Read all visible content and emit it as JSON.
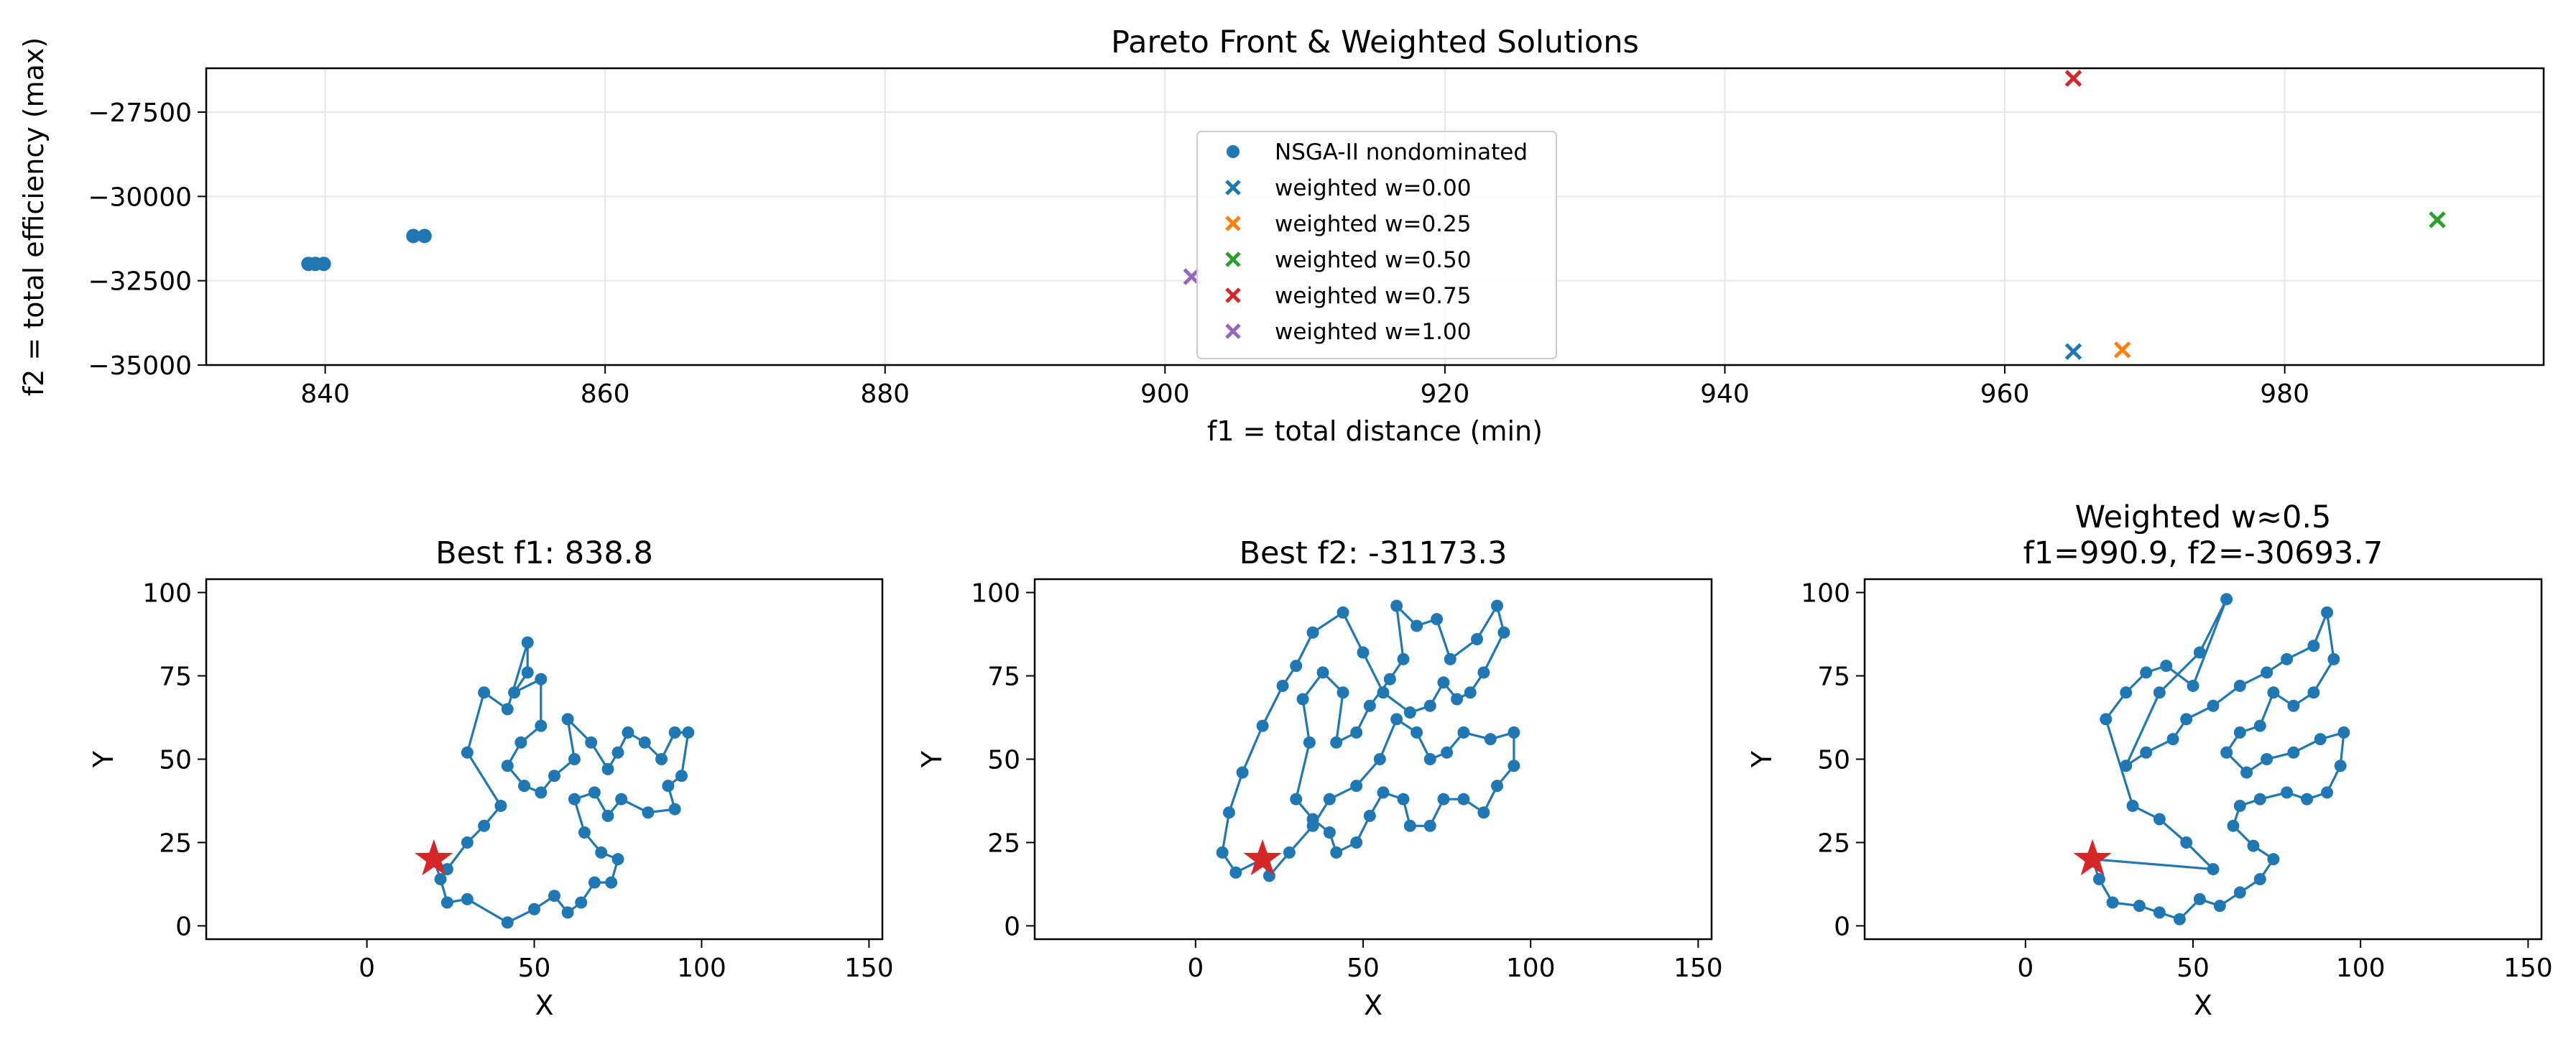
{
  "figure": {},
  "chart_data": [
    {
      "type": "scatter",
      "title": "Pareto Front & Weighted Solutions",
      "xlabel": "f1 = total distance (min)",
      "ylabel": "f2 = total efficiency (max)",
      "xlim": [
        831.5,
        998.5
      ],
      "ylim": [
        -35000,
        -26200
      ],
      "xticks": [
        840,
        860,
        880,
        900,
        920,
        940,
        960,
        980
      ],
      "yticks": [
        -35000,
        -32500,
        -30000,
        -27500
      ],
      "grid": true,
      "legend_position": "upper-center",
      "series": [
        {
          "name": "NSGA-II nondominated",
          "marker": "circle",
          "color": "#1f77b4",
          "points": [
            [
              838.8,
              -32000
            ],
            [
              839.3,
              -32000
            ],
            [
              839.9,
              -32000
            ],
            [
              846.3,
              -31173.3
            ],
            [
              847.1,
              -31173.3
            ]
          ]
        },
        {
          "name": "weighted w=0.00",
          "marker": "x",
          "color": "#1f77b4",
          "points": [
            [
              964.9,
              -34600
            ]
          ]
        },
        {
          "name": "weighted w=0.25",
          "marker": "x",
          "color": "#ff7f0e",
          "points": [
            [
              968.4,
              -34550
            ]
          ]
        },
        {
          "name": "weighted w=0.50",
          "marker": "x",
          "color": "#2ca02c",
          "points": [
            [
              990.9,
              -30693.7
            ]
          ]
        },
        {
          "name": "weighted w=0.75",
          "marker": "x",
          "color": "#d62728",
          "points": [
            [
              964.9,
              -26500
            ]
          ]
        },
        {
          "name": "weighted w=1.00",
          "marker": "x",
          "color": "#9467bd",
          "points": [
            [
              901.9,
              -32380
            ]
          ]
        }
      ]
    },
    {
      "type": "line",
      "title": "Best f1: 838.8",
      "xlabel": "X",
      "ylabel": "Y",
      "xlim": [
        -48,
        154
      ],
      "ylim": [
        -4,
        104
      ],
      "xticks": [
        0,
        50,
        100,
        150
      ],
      "yticks": [
        0,
        25,
        50,
        75,
        100
      ],
      "color": "#1f77b4",
      "depot_color": "#d62728",
      "depot": [
        20,
        20
      ],
      "route": [
        [
          20,
          20
        ],
        [
          24,
          17
        ],
        [
          30,
          25
        ],
        [
          35,
          30
        ],
        [
          40,
          36
        ],
        [
          30,
          52
        ],
        [
          35,
          70
        ],
        [
          42,
          65
        ],
        [
          48,
          85
        ],
        [
          48,
          76
        ],
        [
          44,
          70
        ],
        [
          52,
          74
        ],
        [
          52,
          60
        ],
        [
          46,
          55
        ],
        [
          42,
          48
        ],
        [
          47,
          42
        ],
        [
          52,
          40
        ],
        [
          56,
          45
        ],
        [
          62,
          50
        ],
        [
          60,
          62
        ],
        [
          67,
          55
        ],
        [
          72,
          47
        ],
        [
          75,
          52
        ],
        [
          78,
          58
        ],
        [
          83,
          55
        ],
        [
          88,
          50
        ],
        [
          92,
          58
        ],
        [
          96,
          58
        ],
        [
          94,
          45
        ],
        [
          90,
          42
        ],
        [
          92,
          35
        ],
        [
          84,
          34
        ],
        [
          76,
          38
        ],
        [
          72,
          33
        ],
        [
          68,
          40
        ],
        [
          62,
          38
        ],
        [
          65,
          28
        ],
        [
          70,
          22
        ],
        [
          75,
          20
        ],
        [
          73,
          13
        ],
        [
          68,
          13
        ],
        [
          64,
          7
        ],
        [
          60,
          4
        ],
        [
          56,
          9
        ],
        [
          50,
          5
        ],
        [
          42,
          1
        ],
        [
          30,
          8
        ],
        [
          24,
          7
        ],
        [
          22,
          14
        ],
        [
          20,
          20
        ]
      ]
    },
    {
      "type": "line",
      "title": "Best f2: -31173.3",
      "xlabel": "X",
      "ylabel": "Y",
      "xlim": [
        -48,
        154
      ],
      "ylim": [
        -4,
        104
      ],
      "xticks": [
        0,
        50,
        100,
        150
      ],
      "yticks": [
        0,
        25,
        50,
        75,
        100
      ],
      "color": "#1f77b4",
      "depot_color": "#d62728",
      "depot": [
        20,
        20
      ],
      "route": [
        [
          20,
          20
        ],
        [
          22,
          15
        ],
        [
          28,
          22
        ],
        [
          35,
          30
        ],
        [
          40,
          38
        ],
        [
          48,
          42
        ],
        [
          55,
          50
        ],
        [
          60,
          62
        ],
        [
          66,
          58
        ],
        [
          70,
          50
        ],
        [
          75,
          52
        ],
        [
          80,
          58
        ],
        [
          88,
          56
        ],
        [
          95,
          58
        ],
        [
          95,
          48
        ],
        [
          90,
          42
        ],
        [
          86,
          34
        ],
        [
          80,
          38
        ],
        [
          74,
          38
        ],
        [
          70,
          30
        ],
        [
          64,
          30
        ],
        [
          62,
          38
        ],
        [
          56,
          40
        ],
        [
          52,
          33
        ],
        [
          48,
          25
        ],
        [
          42,
          22
        ],
        [
          40,
          28
        ],
        [
          35,
          32
        ],
        [
          30,
          38
        ],
        [
          34,
          55
        ],
        [
          32,
          68
        ],
        [
          38,
          76
        ],
        [
          44,
          70
        ],
        [
          42,
          55
        ],
        [
          48,
          58
        ],
        [
          52,
          66
        ],
        [
          58,
          74
        ],
        [
          62,
          80
        ],
        [
          60,
          96
        ],
        [
          66,
          90
        ],
        [
          72,
          92
        ],
        [
          76,
          80
        ],
        [
          84,
          86
        ],
        [
          90,
          96
        ],
        [
          92,
          88
        ],
        [
          86,
          76
        ],
        [
          82,
          70
        ],
        [
          78,
          68
        ],
        [
          74,
          73
        ],
        [
          70,
          66
        ],
        [
          64,
          64
        ],
        [
          56,
          70
        ],
        [
          50,
          82
        ],
        [
          44,
          94
        ],
        [
          35,
          88
        ],
        [
          30,
          78
        ],
        [
          26,
          72
        ],
        [
          20,
          60
        ],
        [
          14,
          46
        ],
        [
          10,
          34
        ],
        [
          8,
          22
        ],
        [
          12,
          16
        ],
        [
          20,
          20
        ]
      ]
    },
    {
      "type": "line",
      "title": "Weighted w≈0.5\nf1=990.9, f2=-30693.7",
      "xlabel": "X",
      "ylabel": "Y",
      "xlim": [
        -48,
        154
      ],
      "ylim": [
        -4,
        104
      ],
      "xticks": [
        0,
        50,
        100,
        150
      ],
      "yticks": [
        0,
        25,
        50,
        75,
        100
      ],
      "color": "#1f77b4",
      "depot_color": "#d62728",
      "depot": [
        20,
        20
      ],
      "route": [
        [
          20,
          20
        ],
        [
          56,
          17
        ],
        [
          48,
          25
        ],
        [
          40,
          32
        ],
        [
          32,
          36
        ],
        [
          24,
          62
        ],
        [
          30,
          70
        ],
        [
          36,
          76
        ],
        [
          42,
          78
        ],
        [
          50,
          72
        ],
        [
          60,
          98
        ],
        [
          52,
          82
        ],
        [
          40,
          70
        ],
        [
          30,
          48
        ],
        [
          36,
          52
        ],
        [
          44,
          56
        ],
        [
          48,
          62
        ],
        [
          56,
          66
        ],
        [
          64,
          72
        ],
        [
          72,
          76
        ],
        [
          78,
          80
        ],
        [
          86,
          84
        ],
        [
          90,
          94
        ],
        [
          92,
          80
        ],
        [
          86,
          70
        ],
        [
          80,
          66
        ],
        [
          74,
          70
        ],
        [
          70,
          60
        ],
        [
          64,
          58
        ],
        [
          60,
          52
        ],
        [
          66,
          46
        ],
        [
          72,
          50
        ],
        [
          80,
          52
        ],
        [
          88,
          56
        ],
        [
          95,
          58
        ],
        [
          94,
          48
        ],
        [
          90,
          40
        ],
        [
          84,
          38
        ],
        [
          78,
          40
        ],
        [
          70,
          38
        ],
        [
          64,
          36
        ],
        [
          62,
          30
        ],
        [
          68,
          24
        ],
        [
          74,
          20
        ],
        [
          70,
          14
        ],
        [
          64,
          10
        ],
        [
          58,
          6
        ],
        [
          52,
          8
        ],
        [
          46,
          2
        ],
        [
          40,
          4
        ],
        [
          34,
          6
        ],
        [
          26,
          7
        ],
        [
          22,
          14
        ],
        [
          20,
          20
        ]
      ]
    }
  ]
}
